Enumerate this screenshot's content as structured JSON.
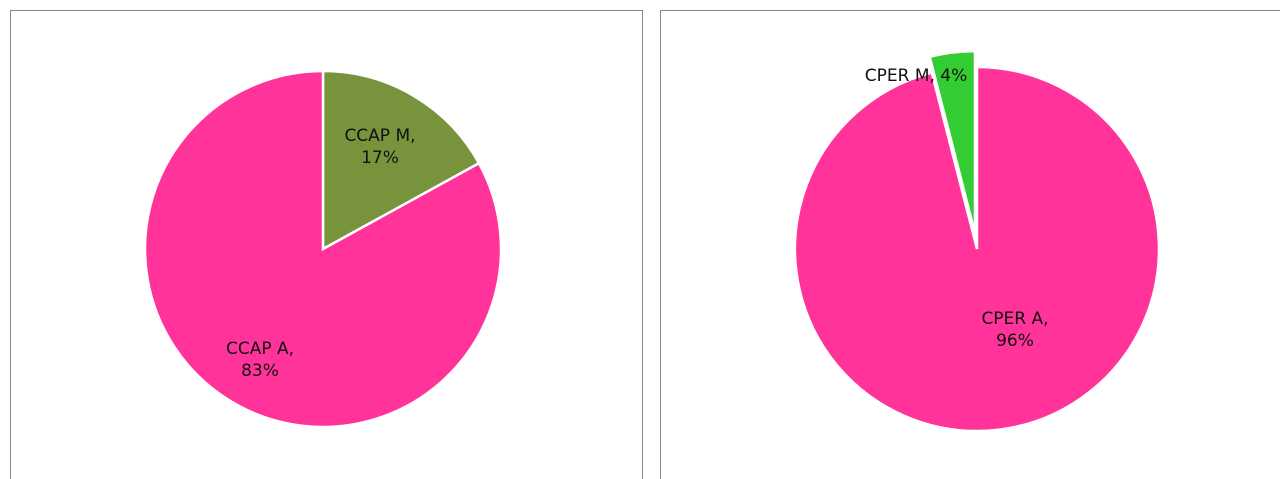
{
  "chart_data": [
    {
      "type": "pie",
      "values": [
        17,
        83
      ],
      "value_labels": [
        "CCAP M, 17%",
        "CCAP A, 83%"
      ],
      "colors": [
        "#77933c",
        "#ff3399"
      ]
    },
    {
      "type": "pie",
      "values": [
        96,
        4
      ],
      "value_labels": [
        "CPER A, 96%",
        "CPER M, 4%"
      ],
      "colors": [
        "#ff3399",
        "#33cc33"
      ]
    }
  ]
}
